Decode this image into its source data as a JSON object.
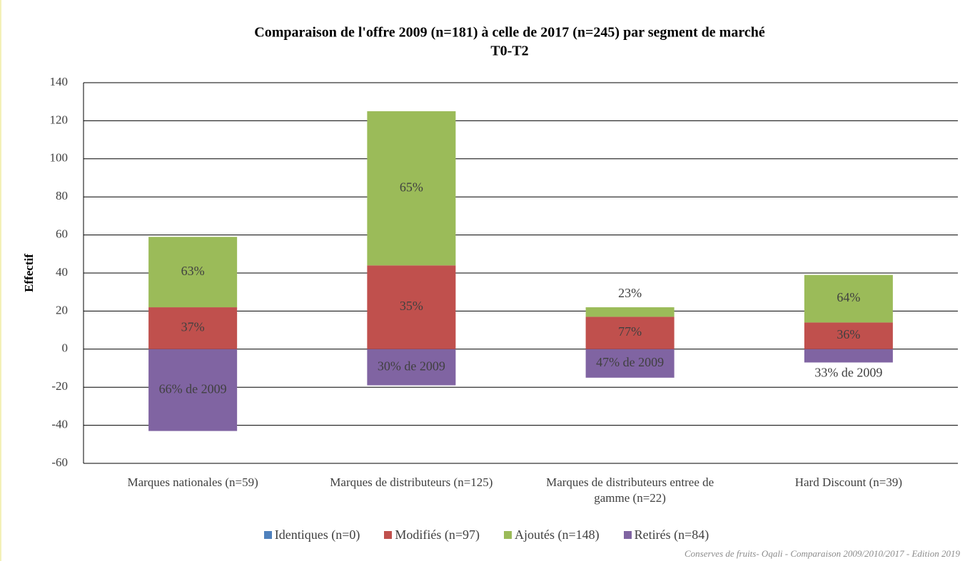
{
  "chart_data": {
    "type": "stacked_bar",
    "title": "Comparaison de l'offre 2009 (n=181) à celle de 2017 (n=245) par segment de marché",
    "subtitle": "T0-T2",
    "y_label": "Effectif",
    "categories": [
      "Marques nationales (n=59)",
      "Marques de distributeurs (n=125)",
      "Marques de distributeurs entree de gamme (n=22)",
      "Hard Discount (n=39)"
    ],
    "series": [
      {
        "name": "Identiques (n=0)",
        "color": "#4f81bd",
        "values": [
          0,
          0,
          0,
          0
        ]
      },
      {
        "name": "Modifiés (n=97)",
        "color": "#c0504d",
        "values": [
          22,
          44,
          17,
          14
        ],
        "segment_labels": [
          "37%",
          "35%",
          "77%",
          "36%"
        ]
      },
      {
        "name": "Ajoutés (n=148)",
        "color": "#9bbb59",
        "values": [
          37,
          81,
          5,
          25
        ],
        "segment_labels": [
          "63%",
          "65%",
          "23%",
          "64%"
        ]
      },
      {
        "name": "Retirés (n=84)",
        "color": "#8064a2",
        "values": [
          -43,
          -19,
          -15,
          -7
        ],
        "segment_labels": [
          "66% de 2009",
          "30% de 2009",
          "47% de 2009",
          "33% de 2009"
        ]
      }
    ],
    "ylim": [
      -60,
      140
    ],
    "yticks": [
      -60,
      -40,
      -20,
      0,
      20,
      40,
      60,
      80,
      100,
      120,
      140
    ],
    "grid": true,
    "footer": "Conserves de fruits- Oqali - Comparaison 2009/2010/2017 - Edition 2019"
  }
}
